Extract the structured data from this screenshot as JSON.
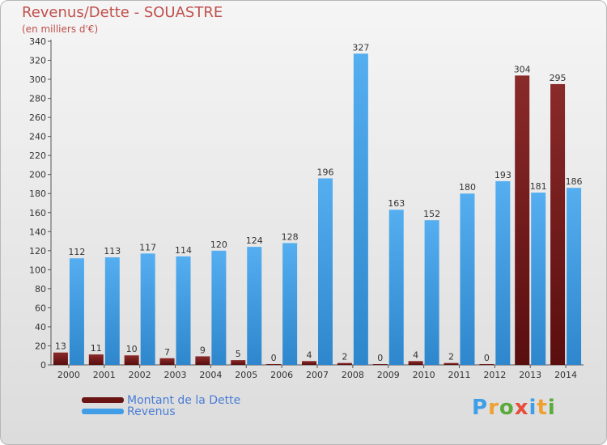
{
  "chart_data": {
    "type": "bar",
    "title": "Revenus/Dette - SOUASTRE",
    "subtitle": "(en milliers d'€)",
    "categories": [
      "2000",
      "2001",
      "2002",
      "2003",
      "2004",
      "2005",
      "2006",
      "2007",
      "2008",
      "2009",
      "2010",
      "2011",
      "2012",
      "2013",
      "2014"
    ],
    "series": [
      {
        "name": "Montant de la Dette",
        "color": "#7b1e1e",
        "values": [
          13,
          11,
          10,
          7,
          9,
          5,
          0,
          4,
          2,
          0,
          4,
          2,
          0,
          304,
          295
        ]
      },
      {
        "name": "Revenus",
        "color": "#3f9ee6",
        "values": [
          112,
          113,
          117,
          114,
          120,
          124,
          128,
          196,
          327,
          163,
          152,
          180,
          193,
          181,
          186
        ]
      }
    ],
    "ylim": [
      0,
      340
    ],
    "yticks": [
      0,
      20,
      40,
      60,
      80,
      100,
      120,
      140,
      160,
      180,
      200,
      220,
      240,
      260,
      280,
      300,
      320,
      340
    ],
    "grid": false,
    "legend_position": "bottom-left"
  },
  "logo": {
    "text": "Proxiti",
    "colors": [
      "#3f9ee6",
      "#f0a030",
      "#5aaa3c",
      "#e74c3c",
      "#3f9ee6",
      "#f0a030",
      "#5aaa3c"
    ]
  }
}
